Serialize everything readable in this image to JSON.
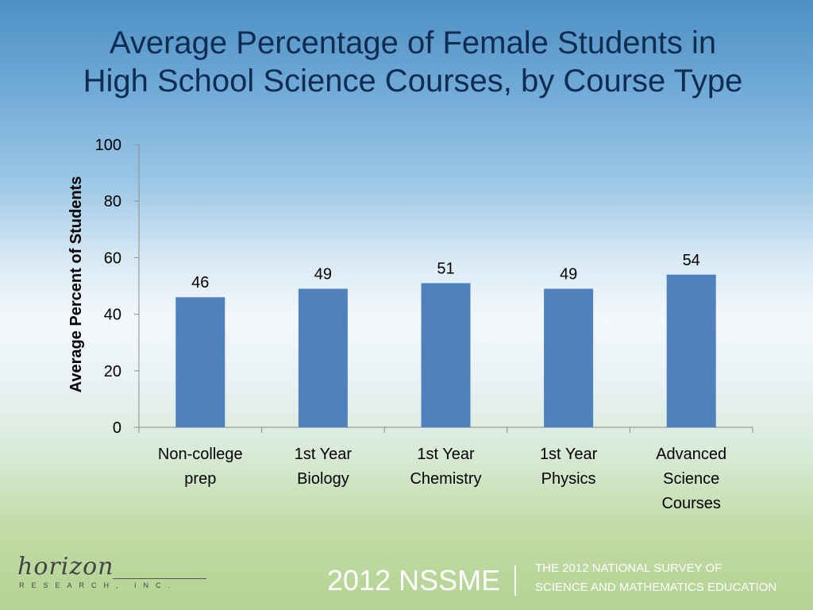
{
  "slide": {
    "title_line1": "Average Percentage of Female Students in",
    "title_line2": "High School Science Courses, by Course Type"
  },
  "chart_data": {
    "type": "bar",
    "title": "Average Percentage of Female Students in High School Science Courses, by Course Type",
    "ylabel": "Average Percent of Students",
    "xlabel": "",
    "ylim": [
      0,
      100
    ],
    "yticks": [
      0,
      20,
      40,
      60,
      80,
      100
    ],
    "categories": [
      [
        "Non-college",
        "prep"
      ],
      [
        "1st Year",
        "Biology"
      ],
      [
        "1st Year",
        "Chemistry"
      ],
      [
        "1st Year",
        "Physics"
      ],
      [
        "Advanced",
        "Science",
        "Courses"
      ]
    ],
    "values": [
      46,
      49,
      51,
      49,
      54
    ],
    "data_labels": true,
    "bar_color": "#4f81bd",
    "grid": false,
    "legend": "none"
  },
  "footer": {
    "logo_text": "horizon",
    "logo_subtext": "RESEARCH, INC.",
    "survey_short": "2012 NSSME",
    "survey_line1": "THE 2012 NATIONAL SURVEY OF",
    "survey_line2": "SCIENCE AND MATHEMATICS EDUCATION"
  }
}
